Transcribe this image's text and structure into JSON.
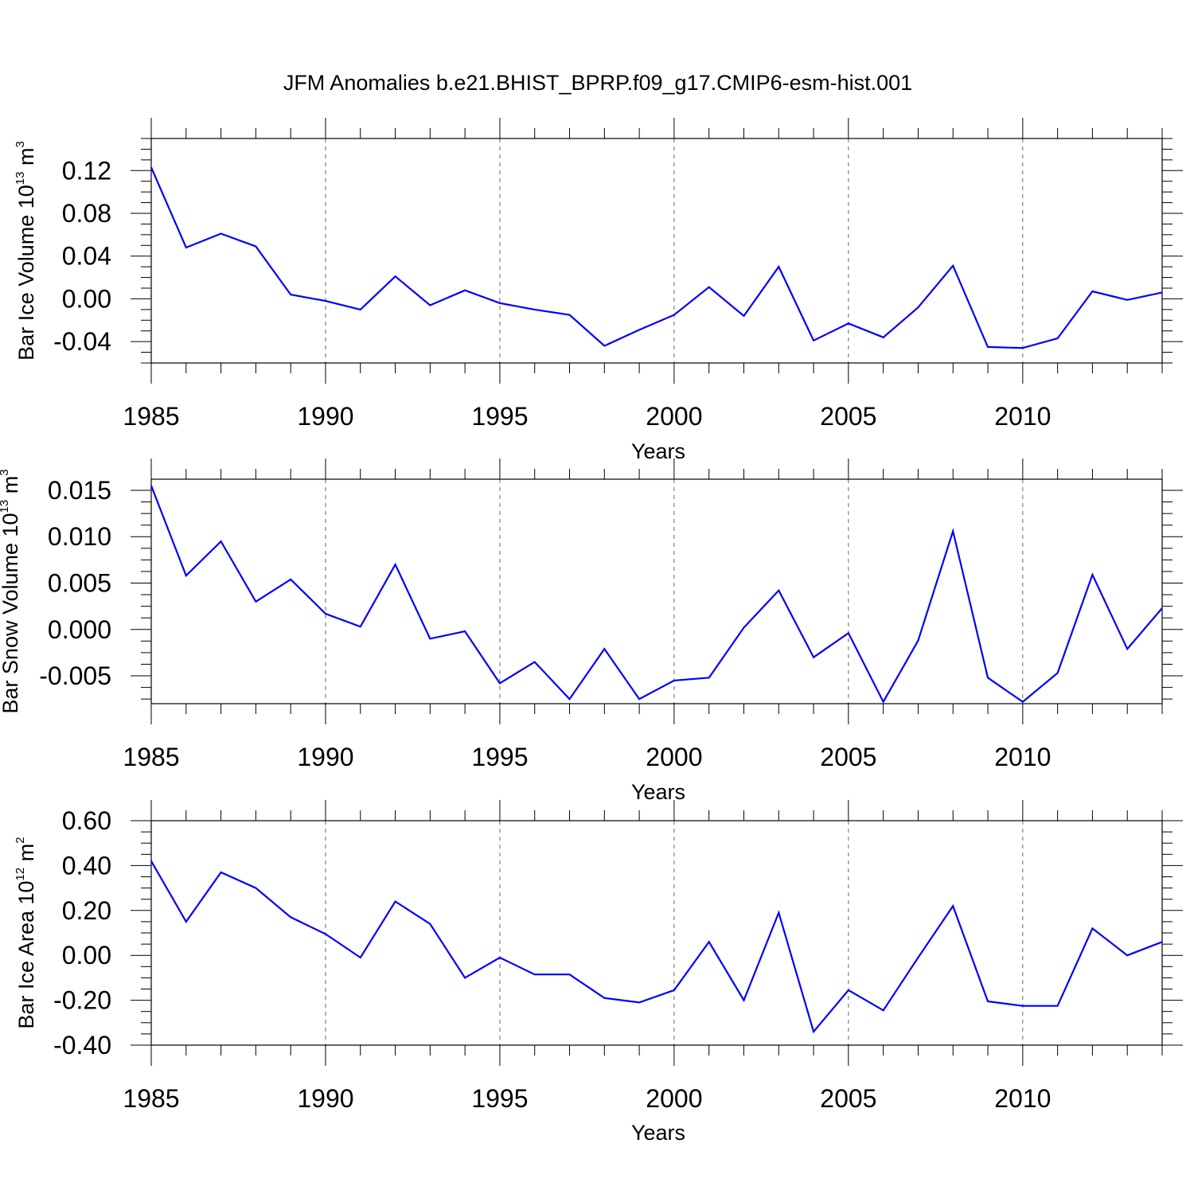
{
  "title": "JFM Anomalies b.e21.BHIST_BPRP.f09_g17.CMIP6-esm-hist.001",
  "line_color": "#0000ff",
  "chart_data": [
    {
      "type": "line",
      "ylabel_main": "Bar Ice Volume 10",
      "ylabel_exp": "13",
      "ylabel_unit": " m",
      "ylabel_unit_exp": "3",
      "xlabel": "Years",
      "xlim": [
        1985,
        2014
      ],
      "ylim": [
        -0.06,
        0.15
      ],
      "yticks": [
        -0.04,
        0.0,
        0.04,
        0.08,
        0.12
      ],
      "ytick_labels": [
        "-0.04",
        "0.00",
        "0.04",
        "0.08",
        "0.12"
      ],
      "xticks": [
        1985,
        1990,
        1995,
        2000,
        2005,
        2010
      ],
      "xtick_labels": [
        "1985",
        "1990",
        "1995",
        "2000",
        "2005",
        "2010"
      ],
      "grid_x": [
        1990,
        1995,
        2000,
        2005,
        2010
      ],
      "series": [
        {
          "name": "Bar Ice Volume",
          "x": [
            1985,
            1986,
            1987,
            1988,
            1989,
            1990,
            1991,
            1992,
            1993,
            1994,
            1995,
            1996,
            1997,
            1998,
            1999,
            2000,
            2001,
            2002,
            2003,
            2004,
            2005,
            2006,
            2007,
            2008,
            2009,
            2010,
            2011,
            2012,
            2013,
            2014
          ],
          "values": [
            0.123,
            0.048,
            0.061,
            0.049,
            0.004,
            -0.002,
            -0.01,
            0.021,
            -0.006,
            0.008,
            -0.004,
            -0.01,
            -0.015,
            -0.044,
            -0.029,
            -0.015,
            0.011,
            -0.016,
            0.03,
            -0.039,
            -0.023,
            -0.036,
            -0.008,
            0.031,
            -0.045,
            -0.046,
            -0.037,
            0.007,
            -0.001,
            0.006
          ]
        }
      ]
    },
    {
      "type": "line",
      "ylabel_main": "Bar Snow Volume 10",
      "ylabel_exp": "13",
      "ylabel_unit": " m",
      "ylabel_unit_exp": "3",
      "xlabel": "Years",
      "xlim": [
        1985,
        2014
      ],
      "ylim": [
        -0.008,
        0.0162
      ],
      "yticks": [
        -0.005,
        0.0,
        0.005,
        0.01,
        0.015
      ],
      "ytick_labels": [
        "-0.005",
        "0.000",
        "0.005",
        "0.010",
        "0.015"
      ],
      "xticks": [
        1985,
        1990,
        1995,
        2000,
        2005,
        2010
      ],
      "xtick_labels": [
        "1985",
        "1990",
        "1995",
        "2000",
        "2005",
        "2010"
      ],
      "grid_x": [
        1990,
        1995,
        2000,
        2005,
        2010
      ],
      "series": [
        {
          "name": "Bar Snow Volume",
          "x": [
            1985,
            1986,
            1987,
            1988,
            1989,
            1990,
            1991,
            1992,
            1993,
            1994,
            1995,
            1996,
            1997,
            1998,
            1999,
            2000,
            2001,
            2002,
            2003,
            2004,
            2005,
            2006,
            2007,
            2008,
            2009,
            2010,
            2011,
            2012,
            2013,
            2014
          ],
          "values": [
            0.0155,
            0.0058,
            0.0095,
            0.003,
            0.0054,
            0.0017,
            0.0003,
            0.007,
            -0.001,
            -0.0002,
            -0.0058,
            -0.0035,
            -0.0075,
            -0.0021,
            -0.0075,
            -0.0055,
            -0.0052,
            0.0002,
            0.0042,
            -0.003,
            -0.0004,
            -0.0078,
            -0.0012,
            0.0106,
            -0.0052,
            -0.0078,
            -0.0047,
            0.0059,
            -0.0021,
            0.0023
          ]
        }
      ]
    },
    {
      "type": "line",
      "ylabel_main": "Bar Ice Area 10",
      "ylabel_exp": "12",
      "ylabel_unit": " m",
      "ylabel_unit_exp": "2",
      "xlabel": "Years",
      "xlim": [
        1985,
        2014
      ],
      "ylim": [
        -0.4,
        0.6
      ],
      "yticks": [
        -0.4,
        -0.2,
        0.0,
        0.2,
        0.4,
        0.6
      ],
      "ytick_labels": [
        "-0.40",
        "-0.20",
        "0.00",
        "0.20",
        "0.40",
        "0.60"
      ],
      "xticks": [
        1985,
        1990,
        1995,
        2000,
        2005,
        2010
      ],
      "xtick_labels": [
        "1985",
        "1990",
        "1995",
        "2000",
        "2005",
        "2010"
      ],
      "grid_x": [
        1990,
        1995,
        2000,
        2005,
        2010
      ],
      "series": [
        {
          "name": "Bar Ice Area",
          "x": [
            1985,
            1986,
            1987,
            1988,
            1989,
            1990,
            1991,
            1992,
            1993,
            1994,
            1995,
            1996,
            1997,
            1998,
            1999,
            2000,
            2001,
            2002,
            2003,
            2004,
            2005,
            2006,
            2007,
            2008,
            2009,
            2010,
            2011,
            2012,
            2013,
            2014
          ],
          "values": [
            0.42,
            0.15,
            0.37,
            0.3,
            0.17,
            0.095,
            -0.01,
            0.24,
            0.14,
            -0.1,
            -0.01,
            -0.085,
            -0.085,
            -0.19,
            -0.21,
            -0.155,
            0.06,
            -0.2,
            0.19,
            -0.34,
            -0.155,
            -0.245,
            -0.01,
            0.22,
            -0.205,
            -0.225,
            -0.225,
            0.12,
            0.0,
            0.06
          ]
        }
      ]
    }
  ]
}
